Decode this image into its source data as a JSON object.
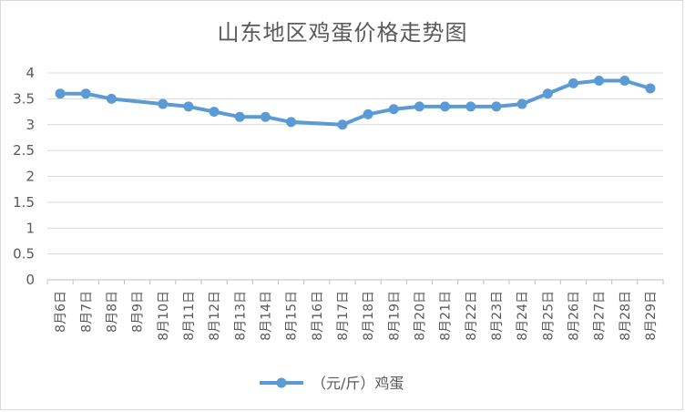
{
  "chart_data": {
    "type": "line",
    "title": "山东地区鸡蛋价格走势图",
    "categories": [
      "8月6日",
      "8月7日",
      "8月8日",
      "8月9日",
      "8月10日",
      "8月11日",
      "8月12日",
      "8月13日",
      "8月14日",
      "8月15日",
      "8月16日",
      "8月17日",
      "8月18日",
      "8月19日",
      "8月20日",
      "8月21日",
      "8月22日",
      "8月23日",
      "8月24日",
      "8月25日",
      "8月26日",
      "8月27日",
      "8月28日",
      "8月29日"
    ],
    "series": [
      {
        "name": "（元/斤）鸡蛋",
        "values": [
          3.6,
          3.6,
          3.5,
          null,
          3.4,
          3.35,
          3.25,
          3.15,
          3.15,
          3.05,
          null,
          3.0,
          3.2,
          3.3,
          3.35,
          3.35,
          3.35,
          3.35,
          3.4,
          3.6,
          3.8,
          3.85,
          3.85,
          3.7
        ],
        "color": "#5b9bd5"
      }
    ],
    "xlabel": "",
    "ylabel": "",
    "ylim": [
      0,
      4
    ],
    "yticks": [
      "0",
      "0.5",
      "1",
      "1.5",
      "2",
      "2.5",
      "3",
      "3.5",
      "4"
    ],
    "grid": true,
    "legend": "bottom"
  }
}
